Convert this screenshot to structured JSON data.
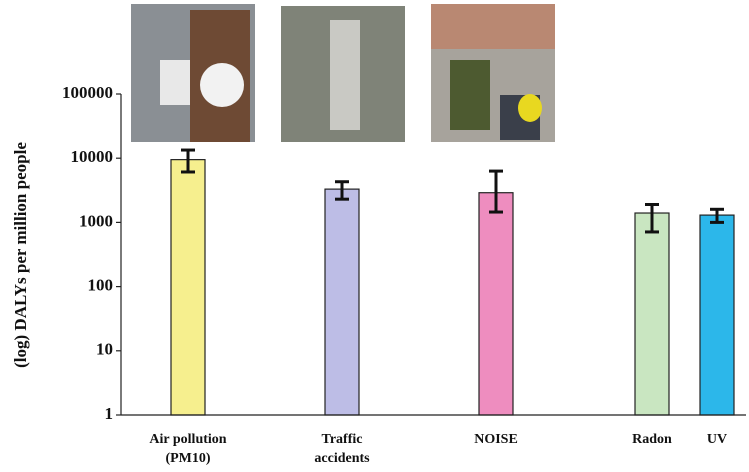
{
  "chart_data": {
    "type": "bar",
    "y_label": "(log) DALYs per million people",
    "categories": [
      "Air pollution\n(PM10)",
      "Traffic\naccidents",
      "NOISE",
      "Radon",
      "UV"
    ],
    "values": [
      9500,
      3300,
      2900,
      1400,
      1300
    ],
    "error_ranges": [
      [
        6100,
        13400
      ],
      [
        2300,
        4300
      ],
      [
        1450,
        6300
      ],
      [
        710,
        1900
      ],
      [
        1000,
        1600
      ]
    ],
    "colors": [
      "#f6ef8e",
      "#bdbde6",
      "#ee8dbf",
      "#c9e6c1",
      "#2cb7ea"
    ],
    "log_scale": true,
    "ylim": [
      1,
      100000
    ],
    "yticks": [
      1,
      10,
      100,
      1000,
      10000,
      100000
    ]
  }
}
